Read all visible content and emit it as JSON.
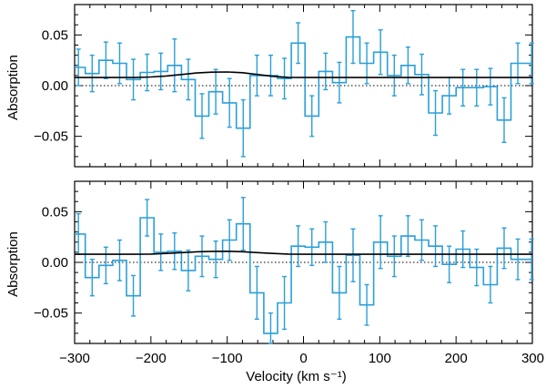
{
  "chart_data": [
    {
      "type": "line",
      "panel": "top",
      "ylabel": "Absorption",
      "xlabel": "",
      "xlim": [
        -300,
        300
      ],
      "ylim": [
        -0.08,
        0.08
      ],
      "yticks": [
        0.05,
        0.0,
        -0.05
      ],
      "ytick_labels": [
        "0.05",
        "0.00",
        "−0.05"
      ],
      "series": [
        {
          "name": "observed",
          "style": "step-with-errorbars",
          "x": [
            -295,
            -277,
            -259,
            -241,
            -223,
            -205,
            -187,
            -169,
            -151,
            -133,
            -115,
            -97,
            -79,
            -61,
            -43,
            -25,
            -7,
            11,
            29,
            47,
            65,
            83,
            101,
            119,
            137,
            155,
            173,
            191,
            209,
            227,
            245,
            263,
            281,
            299
          ],
          "y": [
            0.018,
            0.012,
            0.025,
            0.022,
            0.006,
            0.013,
            0.014,
            0.02,
            0.006,
            -0.03,
            -0.006,
            -0.017,
            -0.042,
            0.01,
            0.01,
            0.007,
            0.042,
            -0.03,
            0.014,
            0.003,
            0.048,
            0.022,
            0.033,
            0.01,
            0.02,
            0.011,
            -0.027,
            -0.01,
            -0.002,
            -0.002,
            -0.001,
            -0.034,
            0.022,
            0.022
          ],
          "err": [
            0.018,
            0.018,
            0.018,
            0.02,
            0.02,
            0.018,
            0.018,
            0.026,
            0.02,
            0.022,
            0.022,
            0.024,
            0.028,
            0.02,
            0.02,
            0.02,
            0.02,
            0.02,
            0.018,
            0.02,
            0.026,
            0.02,
            0.022,
            0.02,
            0.018,
            0.02,
            0.022,
            0.018,
            0.018,
            0.018,
            0.018,
            0.022,
            0.02,
            0.02
          ]
        },
        {
          "name": "model",
          "style": "solid",
          "x": [
            -300,
            -280,
            -260,
            -240,
            -220,
            -200,
            -180,
            -160,
            -140,
            -120,
            -100,
            -80,
            -60,
            -40,
            -20,
            0,
            50,
            100,
            150,
            200,
            250,
            300
          ],
          "y": [
            0.008,
            0.008,
            0.008,
            0.008,
            0.008,
            0.0085,
            0.0095,
            0.011,
            0.0125,
            0.0133,
            0.0135,
            0.0128,
            0.011,
            0.0092,
            0.0082,
            0.008,
            0.008,
            0.008,
            0.008,
            0.008,
            0.008,
            0.008
          ]
        },
        {
          "name": "zero",
          "style": "dotted",
          "x": [
            -300,
            300
          ],
          "y": [
            0,
            0
          ]
        }
      ]
    },
    {
      "type": "line",
      "panel": "bottom",
      "ylabel": "Absorption",
      "xlabel": "Velocity (km s⁻¹)",
      "xlim": [
        -300,
        300
      ],
      "ylim": [
        -0.08,
        0.08
      ],
      "yticks": [
        0.05,
        0.0,
        -0.05
      ],
      "ytick_labels": [
        "0.05",
        "0.00",
        "−0.05"
      ],
      "xticks": [
        -300,
        -200,
        -100,
        0,
        100,
        200,
        300
      ],
      "xtick_labels": [
        "−300",
        "−200",
        "−100",
        "0",
        "100",
        "200",
        "300"
      ],
      "series": [
        {
          "name": "observed",
          "style": "step-with-errorbars",
          "x": [
            -295,
            -277,
            -259,
            -241,
            -223,
            -205,
            -187,
            -169,
            -151,
            -133,
            -115,
            -97,
            -79,
            -61,
            -43,
            -25,
            -7,
            11,
            29,
            47,
            65,
            83,
            101,
            119,
            137,
            155,
            173,
            191,
            209,
            227,
            245,
            263,
            281,
            299
          ],
          "y": [
            0.028,
            -0.015,
            -0.003,
            0.002,
            -0.033,
            0.044,
            0.01,
            0.011,
            -0.008,
            0.006,
            0.003,
            0.022,
            0.038,
            -0.03,
            -0.07,
            -0.04,
            0.016,
            0.015,
            0.02,
            -0.03,
            0.007,
            -0.042,
            0.02,
            0.006,
            0.026,
            0.022,
            0.016,
            -0.002,
            0.013,
            -0.005,
            -0.022,
            0.014,
            0.003,
            0.003
          ],
          "err": [
            0.02,
            0.018,
            0.018,
            0.02,
            0.02,
            0.018,
            0.018,
            0.018,
            0.02,
            0.02,
            0.018,
            0.02,
            0.026,
            0.026,
            0.02,
            0.026,
            0.02,
            0.018,
            0.02,
            0.026,
            0.026,
            0.02,
            0.026,
            0.02,
            0.02,
            0.02,
            0.02,
            0.018,
            0.018,
            0.018,
            0.018,
            0.02,
            0.02,
            0.02
          ]
        },
        {
          "name": "model",
          "style": "solid",
          "x": [
            -300,
            -280,
            -260,
            -240,
            -220,
            -200,
            -180,
            -160,
            -140,
            -120,
            -100,
            -80,
            -60,
            -40,
            -20,
            0,
            50,
            100,
            150,
            200,
            250,
            300
          ],
          "y": [
            0.008,
            0.008,
            0.008,
            0.008,
            0.008,
            0.0082,
            0.0088,
            0.0096,
            0.0104,
            0.0109,
            0.011,
            0.0105,
            0.0096,
            0.0088,
            0.0082,
            0.008,
            0.008,
            0.008,
            0.008,
            0.008,
            0.008,
            0.008
          ]
        },
        {
          "name": "zero",
          "style": "dotted",
          "x": [
            -300,
            300
          ],
          "y": [
            0,
            0
          ]
        }
      ]
    }
  ]
}
